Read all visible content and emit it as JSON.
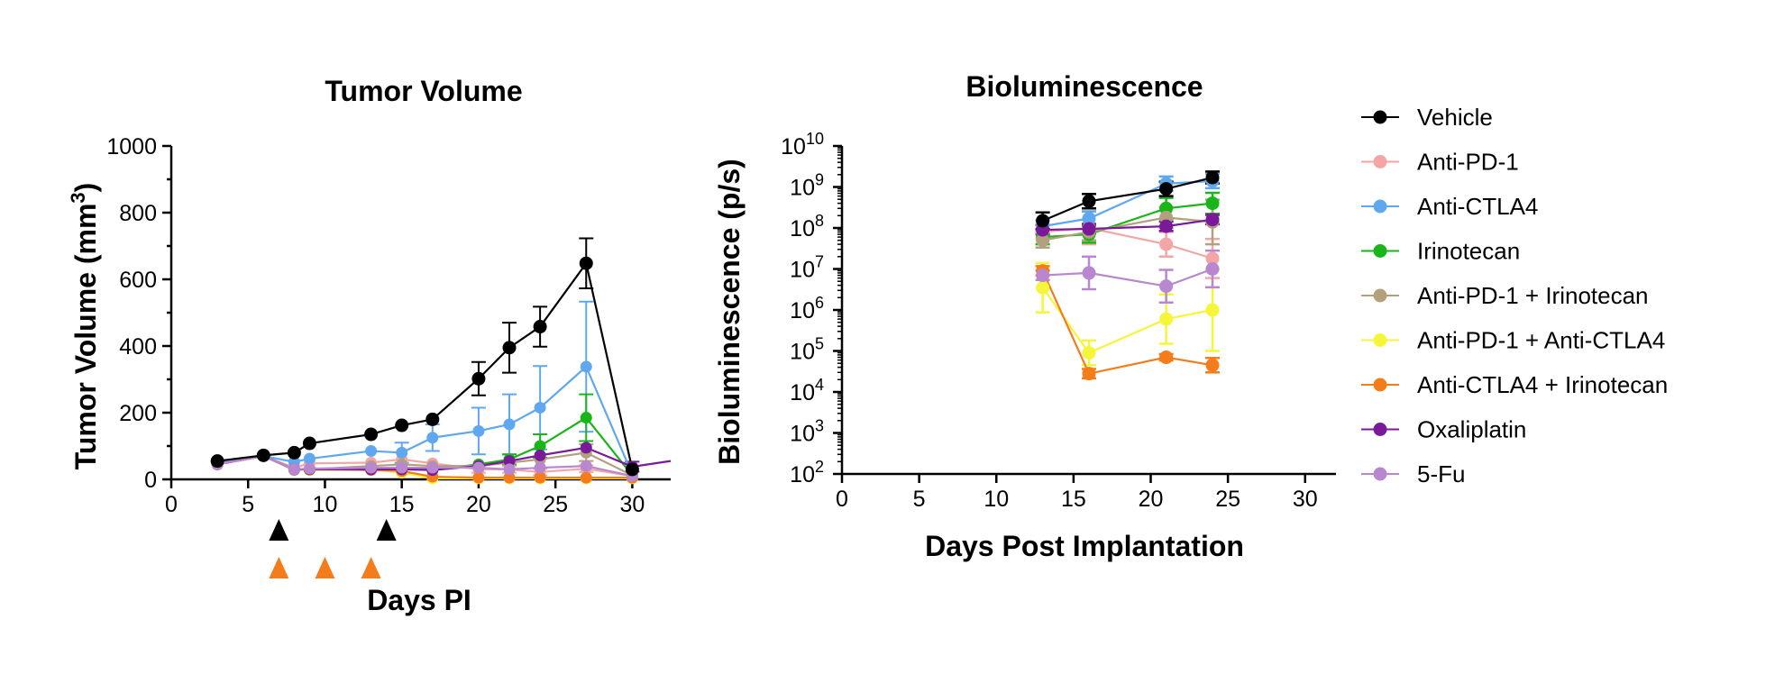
{
  "colors": {
    "Vehicle": "#000000",
    "Anti-PD-1": "#f4a6a6",
    "Anti-CTLA4": "#5fa8f0",
    "Irinotecan": "#18b618",
    "Anti-PD-1 + Irinotecan": "#b3a07e",
    "Anti-PD-1 + Anti-CTLA4": "#f5f53a",
    "Anti-CTLA4 + Irinotecan": "#f47c1a",
    "Oxaliplatin": "#7a1a9a",
    "5-Fu": "#b887d0"
  },
  "legend": {
    "entries": [
      "Vehicle",
      "Anti-PD-1",
      "Anti-CTLA4",
      "Irinotecan",
      "Anti-PD-1 + Irinotecan",
      "Anti-PD-1 + Anti-CTLA4",
      "Anti-CTLA4 + Irinotecan",
      "Oxaliplatin",
      "5-Fu"
    ]
  },
  "chart_data": [
    {
      "type": "line",
      "title": "Tumor Volume",
      "xlabel": "Days PI",
      "ylabel": "Tumor Volume (mm",
      "ylabel_sup": "3",
      "ylabel_end": ")",
      "xlim": [
        0,
        32.5
      ],
      "ylim": [
        0,
        1000
      ],
      "xticks": [
        0,
        5,
        10,
        15,
        20,
        25,
        30
      ],
      "yticks": [
        0,
        200,
        400,
        600,
        800,
        1000
      ],
      "dosing_markers": [
        {
          "day": 7,
          "row": 1,
          "color": "#000000"
        },
        {
          "day": 14,
          "row": 1,
          "color": "#000000"
        },
        {
          "day": 7,
          "row": 2,
          "color": "#f47c1a"
        },
        {
          "day": 10,
          "row": 2,
          "color": "#f47c1a"
        },
        {
          "day": 13,
          "row": 2,
          "color": "#f47c1a"
        }
      ],
      "series": [
        {
          "name": "Vehicle",
          "x": [
            3,
            6,
            8,
            9,
            13,
            15,
            17,
            20,
            22,
            24,
            27,
            30
          ],
          "y": [
            55,
            72,
            80,
            108,
            135,
            162,
            180,
            302,
            395,
            458,
            648,
            30
          ],
          "err": [
            0,
            0,
            0,
            0,
            0,
            0,
            0,
            50,
            75,
            60,
            75,
            0
          ]
        },
        {
          "name": "Anti-PD-1",
          "x": [
            3,
            6,
            8,
            9,
            13,
            15,
            17,
            20,
            22,
            24,
            27,
            30
          ],
          "y": [
            48,
            70,
            35,
            48,
            50,
            60,
            48,
            30,
            30,
            22,
            32,
            10
          ],
          "err": [
            0,
            0,
            0,
            0,
            0,
            0,
            0,
            10,
            10,
            10,
            10,
            0
          ]
        },
        {
          "name": "Anti-CTLA4",
          "x": [
            3,
            6,
            8,
            9,
            13,
            15,
            17,
            20,
            22,
            24,
            27,
            30
          ],
          "y": [
            50,
            70,
            52,
            62,
            85,
            80,
            125,
            145,
            165,
            215,
            338,
            15
          ],
          "err": [
            0,
            0,
            0,
            0,
            0,
            30,
            40,
            70,
            90,
            125,
            195,
            0
          ]
        },
        {
          "name": "Irinotecan",
          "x": [
            3,
            6,
            8,
            9,
            13,
            15,
            17,
            20,
            22,
            24,
            27,
            30
          ],
          "y": [
            45,
            70,
            30,
            28,
            35,
            35,
            28,
            45,
            60,
            100,
            185,
            12
          ],
          "err": [
            0,
            0,
            0,
            0,
            0,
            0,
            0,
            0,
            15,
            35,
            70,
            0
          ]
        },
        {
          "name": "Anti-PD-1 + Irinotecan",
          "x": [
            3,
            6,
            8,
            9,
            13,
            15,
            17,
            20,
            22,
            24,
            27,
            30
          ],
          "y": [
            45,
            70,
            28,
            30,
            40,
            45,
            40,
            40,
            50,
            60,
            80,
            12
          ],
          "err": [
            0,
            0,
            0,
            0,
            0,
            0,
            0,
            0,
            0,
            0,
            25,
            0
          ]
        },
        {
          "name": "Anti-PD-1 + Anti-CTLA4",
          "x": [
            3,
            6,
            8,
            9,
            13,
            15,
            17,
            20,
            22,
            24,
            27,
            30
          ],
          "y": [
            45,
            70,
            30,
            28,
            30,
            20,
            3,
            3,
            3,
            3,
            3,
            3
          ],
          "err": [
            0,
            0,
            0,
            0,
            0,
            0,
            0,
            0,
            0,
            0,
            0,
            0
          ]
        },
        {
          "name": "Anti-CTLA4 + Irinotecan",
          "x": [
            3,
            6,
            8,
            9,
            13,
            15,
            17,
            20,
            22,
            24,
            27,
            30
          ],
          "y": [
            45,
            70,
            30,
            30,
            28,
            25,
            8,
            5,
            5,
            5,
            5,
            5
          ],
          "err": [
            0,
            0,
            0,
            0,
            0,
            0,
            0,
            0,
            0,
            0,
            0,
            0
          ]
        },
        {
          "name": "Oxaliplatin",
          "x": [
            3,
            6,
            8,
            9,
            13,
            15,
            17,
            20,
            22,
            24,
            27,
            30,
            32.5
          ],
          "y": [
            45,
            70,
            30,
            30,
            30,
            30,
            28,
            40,
            55,
            72,
            95,
            38,
            55
          ],
          "err": [
            0,
            0,
            0,
            0,
            0,
            0,
            0,
            0,
            0,
            0,
            0,
            15,
            0
          ]
        },
        {
          "name": "5-Fu",
          "x": [
            3,
            6,
            8,
            9,
            13,
            15,
            17,
            20,
            22,
            24,
            27,
            30
          ],
          "y": [
            45,
            70,
            30,
            32,
            35,
            35,
            35,
            35,
            30,
            35,
            40,
            10
          ],
          "err": [
            0,
            0,
            0,
            0,
            0,
            0,
            0,
            0,
            0,
            0,
            0,
            0
          ]
        }
      ]
    },
    {
      "type": "line",
      "title": "Bioluminescence",
      "xlabel": "Days Post Implantation",
      "ylabel": "Bioluminescence (p/s)",
      "yscale": "log",
      "xlim": [
        0,
        32
      ],
      "ylim": [
        100,
        10000000000
      ],
      "xticks": [
        0,
        5,
        10,
        15,
        20,
        25,
        30
      ],
      "ytick_exponents": [
        2,
        3,
        4,
        5,
        6,
        7,
        8,
        9,
        10
      ],
      "series": [
        {
          "name": "Vehicle",
          "x": [
            13,
            16,
            21,
            24
          ],
          "y": [
            150000000,
            450000000,
            900000000,
            1700000000
          ],
          "err_factor": [
            1.6,
            1.5,
            1.5,
            1.4
          ]
        },
        {
          "name": "Anti-PD-1",
          "x": [
            13,
            16,
            21,
            24
          ],
          "y": [
            80000000,
            100000000,
            40000000,
            18000000
          ],
          "err_factor": [
            1.5,
            2.5,
            2.0,
            3.0
          ]
        },
        {
          "name": "Anti-CTLA4",
          "x": [
            13,
            16,
            21,
            24
          ],
          "y": [
            110000000,
            170000000,
            1200000000,
            1400000000
          ],
          "err_factor": [
            1.4,
            1.5,
            1.5,
            1.5
          ]
        },
        {
          "name": "Irinotecan",
          "x": [
            13,
            16,
            21,
            24
          ],
          "y": [
            60000000,
            70000000,
            300000000,
            400000000
          ],
          "err_factor": [
            1.5,
            1.6,
            1.8,
            1.8
          ]
        },
        {
          "name": "Anti-PD-1 + Irinotecan",
          "x": [
            13,
            16,
            21,
            24
          ],
          "y": [
            50000000,
            80000000,
            180000000,
            140000000
          ],
          "err_factor": [
            1.5,
            1.6,
            1.8,
            3.5
          ]
        },
        {
          "name": "Anti-PD-1 + Anti-CTLA4",
          "x": [
            13,
            16,
            21,
            24
          ],
          "y": [
            3500000,
            90000,
            600000,
            1000000
          ],
          "err_factor": [
            4.0,
            2.0,
            4.0,
            10.0
          ]
        },
        {
          "name": "Anti-CTLA4 + Irinotecan",
          "x": [
            13,
            16,
            21,
            24
          ],
          "y": [
            9000000,
            28000,
            70000,
            45000
          ],
          "err_factor": [
            1.3,
            1.3,
            1.2,
            1.5
          ]
        },
        {
          "name": "Oxaliplatin",
          "x": [
            13,
            16,
            21,
            24
          ],
          "y": [
            90000000,
            95000000,
            110000000,
            160000000
          ],
          "err_factor": [
            1.3,
            1.3,
            1.3,
            1.3
          ]
        },
        {
          "name": "5-Fu",
          "x": [
            13,
            16,
            21,
            24
          ],
          "y": [
            7000000,
            8000000,
            3800000,
            10000000
          ],
          "err_factor": [
            1.3,
            2.5,
            2.5,
            2.8
          ]
        }
      ]
    }
  ]
}
